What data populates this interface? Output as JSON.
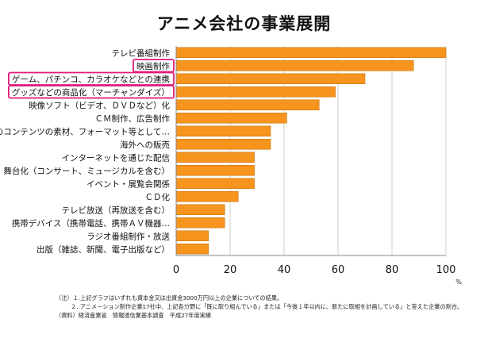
{
  "chart_data": {
    "type": "bar",
    "orientation": "horizontal",
    "title": "アニメ会社の事業展開",
    "unit": "%",
    "xlim": [
      0,
      100
    ],
    "xticks": [
      0,
      20,
      40,
      60,
      80,
      100
    ],
    "bar_color": "#F7941D",
    "highlight_color": "#E0197A",
    "categories": [
      "テレビ番組制作",
      "映画制作",
      "ゲーム、パチンコ、カラオケなどとの連携",
      "グッズなどの商品化（マーチャンダイズ）",
      "映像ソフト（ビデオ、ＤＶＤなど）化",
      "ＣＭ制作、広告制作",
      "他のコンテンツの素材、フォーマット等として…",
      "海外への販売",
      "インターネットを通じた配信",
      "舞台化（コンサート、ミュージカルを含む）",
      "イベント・展覧会関係",
      "ＣＤ化",
      "テレビ放送（再放送を含む）",
      "携帯デバイス（携帯電話、携帯ＡＶ機器…",
      "ラジオ番組制作・放送",
      "出版（雑誌、新聞、電子出版など）"
    ],
    "values": [
      100,
      88,
      70,
      59,
      53,
      41,
      35,
      35,
      29,
      29,
      29,
      23,
      18,
      18,
      12,
      12
    ],
    "highlighted": [
      "映画制作",
      "ゲーム、パチンコ、カラオケなどとの連携",
      "グッズなどの商品化（マーチャンダイズ）"
    ]
  },
  "notes": {
    "line1": "（注）１.上記グラフはいずれも資本金又は出資金3000万円以上の企業についての結果。",
    "line2": "２. アニメーション制作企業17社中、上記各分野に「既に取り組んでいる」または「今後１年以内に、新たに取組を計画している」と答えた企業の割合。",
    "line3": "（資料）経済産業省　情報通信業基本調査　平成27年度実績"
  }
}
